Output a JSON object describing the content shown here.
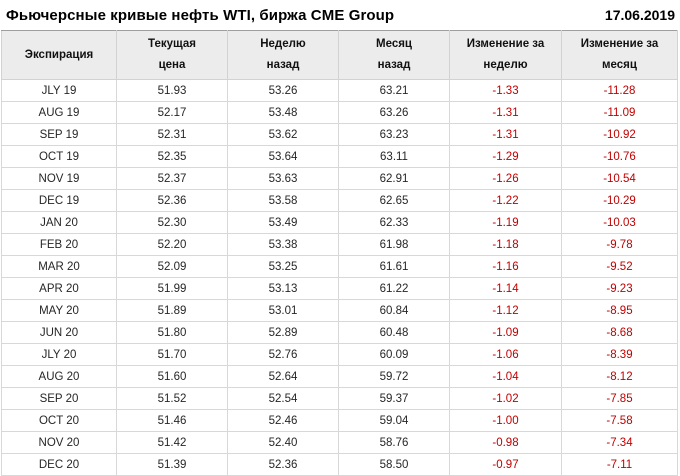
{
  "header": {
    "title": "Фьючерсные кривые нефть WTI, биржа CME Group",
    "date": "17.06.2019"
  },
  "colors": {
    "negative_value": "#c00000",
    "header_background": "#ececec",
    "grid_line": "#d8d8d8",
    "table_top_border": "#9e9e9e"
  },
  "chart_data": {
    "type": "table",
    "title": "Фьючерсные кривые нефть WTI, биржа CME Group",
    "date": "17.06.2019",
    "columns": [
      "Экспирация",
      "Текущая\nцена",
      "Неделю\nназад",
      "Месяц\nназад",
      "Изменение за\nнеделю",
      "Изменение за\nмесяц"
    ],
    "rows": [
      [
        "JLY 19",
        "51.93",
        "53.26",
        "63.21",
        "-1.33",
        "-11.28"
      ],
      [
        "AUG 19",
        "52.17",
        "53.48",
        "63.26",
        "-1.31",
        "-11.09"
      ],
      [
        "SEP 19",
        "52.31",
        "53.62",
        "63.23",
        "-1.31",
        "-10.92"
      ],
      [
        "OCT 19",
        "52.35",
        "53.64",
        "63.11",
        "-1.29",
        "-10.76"
      ],
      [
        "NOV 19",
        "52.37",
        "53.63",
        "62.91",
        "-1.26",
        "-10.54"
      ],
      [
        "DEC 19",
        "52.36",
        "53.58",
        "62.65",
        "-1.22",
        "-10.29"
      ],
      [
        "JAN 20",
        "52.30",
        "53.49",
        "62.33",
        "-1.19",
        "-10.03"
      ],
      [
        "FEB 20",
        "52.20",
        "53.38",
        "61.98",
        "-1.18",
        "-9.78"
      ],
      [
        "MAR 20",
        "52.09",
        "53.25",
        "61.61",
        "-1.16",
        "-9.52"
      ],
      [
        "APR 20",
        "51.99",
        "53.13",
        "61.22",
        "-1.14",
        "-9.23"
      ],
      [
        "MAY 20",
        "51.89",
        "53.01",
        "60.84",
        "-1.12",
        "-8.95"
      ],
      [
        "JUN 20",
        "51.80",
        "52.89",
        "60.48",
        "-1.09",
        "-8.68"
      ],
      [
        "JLY 20",
        "51.70",
        "52.76",
        "60.09",
        "-1.06",
        "-8.39"
      ],
      [
        "AUG 20",
        "51.60",
        "52.64",
        "59.72",
        "-1.04",
        "-8.12"
      ],
      [
        "SEP 20",
        "51.52",
        "52.54",
        "59.37",
        "-1.02",
        "-7.85"
      ],
      [
        "OCT 20",
        "51.46",
        "52.46",
        "59.04",
        "-1.00",
        "-7.58"
      ],
      [
        "NOV 20",
        "51.42",
        "52.40",
        "58.76",
        "-0.98",
        "-7.34"
      ],
      [
        "DEC 20",
        "51.39",
        "52.36",
        "58.50",
        "-0.97",
        "-7.11"
      ]
    ]
  }
}
